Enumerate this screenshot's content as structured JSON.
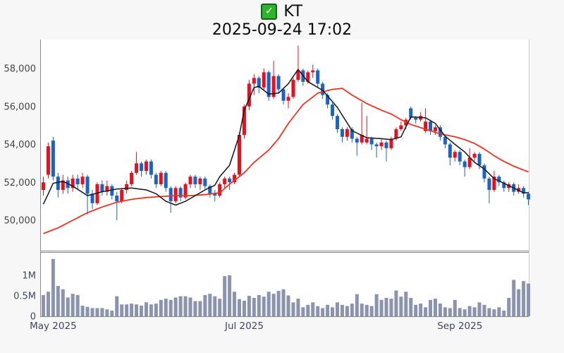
{
  "header": {
    "checkbox_icon": "checked-checkbox-icon",
    "checkbox_glyph": "✓",
    "checkbox_color": "#2eb32e",
    "checkbox_border": "#116611",
    "title": "KT",
    "datetime": "2025-09-24 17:02"
  },
  "chart_data": {
    "type": "candlestick",
    "title": "KT",
    "subtitle": "2025-09-24 17:02",
    "legend": "none",
    "grid": "off",
    "panels": [
      "price",
      "volume"
    ],
    "price_axis": {
      "side": "left",
      "ticks": [
        50000,
        52000,
        54000,
        56000,
        58000
      ],
      "tick_labels": [
        "50,000",
        "52,000",
        "54,000",
        "56,000",
        "58,000"
      ],
      "min": 48900,
      "max": 59400
    },
    "volume_axis": {
      "side": "left",
      "unit": "M",
      "ticks": [
        0,
        0.5,
        1
      ],
      "tick_labels": [
        "0",
        "0.5M",
        "1M"
      ],
      "max": 1.55
    },
    "x_ticks": [
      {
        "index": 2,
        "label": "May 2025"
      },
      {
        "index": 41,
        "label": "Jul 2025"
      },
      {
        "index": 85,
        "label": "Sep 2025"
      }
    ],
    "candles_ohlc": [
      [
        51600,
        52300,
        51300,
        52000
      ],
      [
        52400,
        54100,
        52200,
        53900
      ],
      [
        54200,
        54400,
        52100,
        52300
      ],
      [
        52300,
        52500,
        51200,
        51600
      ],
      [
        51600,
        52400,
        51400,
        52100
      ],
      [
        52100,
        52300,
        51400,
        51700
      ],
      [
        51700,
        52400,
        51500,
        52200
      ],
      [
        52200,
        52400,
        51600,
        51900
      ],
      [
        51900,
        52500,
        51700,
        52300
      ],
      [
        52300,
        52400,
        50300,
        51400
      ],
      [
        51400,
        51600,
        50600,
        50900
      ],
      [
        50900,
        52000,
        50800,
        51900
      ],
      [
        51900,
        52100,
        51300,
        51500
      ],
      [
        51500,
        52100,
        51300,
        51800
      ],
      [
        51800,
        51900,
        51100,
        51300
      ],
      [
        51300,
        51500,
        50000,
        51000
      ],
      [
        51000,
        51700,
        50900,
        51600
      ],
      [
        51600,
        52100,
        51400,
        51900
      ],
      [
        51900,
        52600,
        51800,
        52500
      ],
      [
        52500,
        53600,
        52400,
        53000
      ],
      [
        53000,
        53100,
        52300,
        52600
      ],
      [
        52600,
        53200,
        52400,
        53100
      ],
      [
        53100,
        53200,
        52200,
        52400
      ],
      [
        52400,
        52500,
        51700,
        51900
      ],
      [
        51900,
        52600,
        51800,
        52500
      ],
      [
        52500,
        52600,
        51500,
        51700
      ],
      [
        51700,
        51800,
        50400,
        51000
      ],
      [
        51000,
        51800,
        50900,
        51700
      ],
      [
        51700,
        51800,
        51000,
        51200
      ],
      [
        51200,
        52000,
        51100,
        51900
      ],
      [
        51900,
        52400,
        51700,
        52300
      ],
      [
        52300,
        52400,
        51700,
        51900
      ],
      [
        51900,
        52300,
        51600,
        52200
      ],
      [
        52200,
        52300,
        51600,
        51800
      ],
      [
        51800,
        51900,
        51200,
        51400
      ],
      [
        51400,
        51600,
        51000,
        51300
      ],
      [
        51300,
        52000,
        51200,
        51900
      ],
      [
        51900,
        52300,
        51700,
        52200
      ],
      [
        52200,
        52300,
        51600,
        52000
      ],
      [
        52000,
        52500,
        51900,
        52400
      ],
      [
        52400,
        54600,
        52300,
        54500
      ],
      [
        54500,
        56100,
        54300,
        56000
      ],
      [
        56000,
        57400,
        55800,
        57200
      ],
      [
        57200,
        57700,
        56600,
        57500
      ],
      [
        57500,
        57600,
        56700,
        57000
      ],
      [
        57000,
        58000,
        56900,
        57800
      ],
      [
        57800,
        57900,
        56300,
        56500
      ],
      [
        56500,
        58400,
        56400,
        57600
      ],
      [
        57600,
        57700,
        56700,
        56900
      ],
      [
        56900,
        57000,
        56100,
        56300
      ],
      [
        56300,
        56700,
        55900,
        56500
      ],
      [
        56500,
        57500,
        56400,
        57400
      ],
      [
        57400,
        59200,
        57300,
        57900
      ],
      [
        57900,
        58000,
        57100,
        57300
      ],
      [
        57300,
        57900,
        57200,
        57800
      ],
      [
        57800,
        58200,
        57500,
        57900
      ],
      [
        57900,
        58000,
        57000,
        57200
      ],
      [
        57200,
        57300,
        56400,
        56600
      ],
      [
        56600,
        56700,
        55900,
        56100
      ],
      [
        56100,
        56200,
        55300,
        55500
      ],
      [
        55500,
        55600,
        54600,
        54800
      ],
      [
        54800,
        54900,
        54100,
        54400
      ],
      [
        54400,
        54900,
        54200,
        54800
      ],
      [
        54800,
        54900,
        54100,
        54300
      ],
      [
        54300,
        54400,
        53400,
        54100
      ],
      [
        54100,
        56200,
        54000,
        54500
      ],
      [
        54100,
        55500,
        54000,
        54300
      ],
      [
        54300,
        54400,
        53700,
        54000
      ],
      [
        54000,
        54100,
        53300,
        53900
      ],
      [
        53900,
        54300,
        53700,
        54100
      ],
      [
        54100,
        54200,
        53100,
        53800
      ],
      [
        53800,
        54400,
        53700,
        54300
      ],
      [
        54300,
        54900,
        54200,
        54800
      ],
      [
        54800,
        55200,
        54700,
        55000
      ],
      [
        55000,
        55400,
        54800,
        55300
      ],
      [
        55900,
        56000,
        55300,
        55400
      ],
      [
        55400,
        55500,
        55100,
        55300
      ],
      [
        55300,
        55700,
        55200,
        55500
      ],
      [
        54700,
        55900,
        54600,
        55200
      ],
      [
        55200,
        55300,
        54500,
        54700
      ],
      [
        54700,
        55000,
        54500,
        54900
      ],
      [
        54900,
        55000,
        54200,
        54400
      ],
      [
        54400,
        54500,
        53800,
        54000
      ],
      [
        54000,
        54100,
        52900,
        53300
      ],
      [
        53300,
        53700,
        53100,
        53600
      ],
      [
        53600,
        53700,
        52900,
        53100
      ],
      [
        53100,
        53200,
        52300,
        52800
      ],
      [
        52800,
        53800,
        52700,
        53300
      ],
      [
        53300,
        53600,
        53100,
        53500
      ],
      [
        53500,
        53600,
        52700,
        52900
      ],
      [
        52900,
        53000,
        52000,
        52200
      ],
      [
        52200,
        52300,
        50900,
        51600
      ],
      [
        51600,
        52600,
        51500,
        52300
      ],
      [
        52300,
        52400,
        51800,
        52000
      ],
      [
        52000,
        52100,
        51500,
        51700
      ],
      [
        51700,
        52000,
        51500,
        51900
      ],
      [
        51900,
        52000,
        51300,
        51500
      ],
      [
        51500,
        51900,
        51400,
        51700
      ],
      [
        51700,
        51800,
        51200,
        51400
      ],
      [
        51400,
        51500,
        50800,
        51100
      ]
    ],
    "volumes_m": [
      0.52,
      0.6,
      1.4,
      0.74,
      0.66,
      0.46,
      0.55,
      0.52,
      0.26,
      0.23,
      0.2,
      0.2,
      0.2,
      0.17,
      0.14,
      0.49,
      0.29,
      0.29,
      0.31,
      0.29,
      0.26,
      0.34,
      0.29,
      0.31,
      0.4,
      0.43,
      0.4,
      0.46,
      0.49,
      0.49,
      0.46,
      0.37,
      0.37,
      0.52,
      0.55,
      0.49,
      0.43,
      0.98,
      1.0,
      0.6,
      0.42,
      0.38,
      0.5,
      0.45,
      0.52,
      0.48,
      0.6,
      0.55,
      0.62,
      0.66,
      0.51,
      0.34,
      0.43,
      0.22,
      0.28,
      0.34,
      0.25,
      0.2,
      0.28,
      0.22,
      0.34,
      0.28,
      0.25,
      0.31,
      0.54,
      0.31,
      0.28,
      0.25,
      0.54,
      0.4,
      0.45,
      0.43,
      0.63,
      0.48,
      0.6,
      0.45,
      0.28,
      0.31,
      0.22,
      0.4,
      0.43,
      0.31,
      0.22,
      0.2,
      0.4,
      0.2,
      0.17,
      0.25,
      0.22,
      0.34,
      0.28,
      0.2,
      0.17,
      0.22,
      0.14,
      0.45,
      0.89,
      0.66,
      0.86,
      0.8
    ],
    "ma_fast_anchors": [
      [
        0,
        50850
      ],
      [
        2,
        51950
      ],
      [
        4,
        52050
      ],
      [
        6,
        51800
      ],
      [
        9,
        51300
      ],
      [
        12,
        51500
      ],
      [
        15,
        51650
      ],
      [
        18,
        51700
      ],
      [
        21,
        51600
      ],
      [
        23,
        51400
      ],
      [
        25,
        51000
      ],
      [
        27,
        50800
      ],
      [
        29,
        51000
      ],
      [
        31,
        51300
      ],
      [
        33,
        51600
      ],
      [
        35,
        51850
      ],
      [
        36,
        52300
      ],
      [
        38,
        52900
      ],
      [
        40,
        54500
      ],
      [
        41,
        55800
      ],
      [
        43,
        57000
      ],
      [
        44,
        57050
      ],
      [
        46,
        56650
      ],
      [
        48,
        56700
      ],
      [
        50,
        57200
      ],
      [
        52,
        57950
      ],
      [
        54,
        57300
      ],
      [
        57,
        56850
      ],
      [
        60,
        55950
      ],
      [
        63,
        54720
      ],
      [
        66,
        54350
      ],
      [
        69,
        54300
      ],
      [
        71,
        54250
      ],
      [
        73,
        54400
      ],
      [
        75,
        55450
      ],
      [
        78,
        55400
      ],
      [
        80,
        55100
      ],
      [
        82,
        54430
      ],
      [
        84,
        54000
      ],
      [
        86,
        53600
      ],
      [
        88,
        53050
      ],
      [
        90,
        52700
      ],
      [
        92,
        52200
      ],
      [
        94,
        51950
      ],
      [
        96,
        51700
      ],
      [
        98,
        51450
      ],
      [
        99,
        51450
      ]
    ],
    "ma_slow_anchors": [
      [
        0,
        49300
      ],
      [
        3,
        49600
      ],
      [
        6,
        50000
      ],
      [
        9,
        50400
      ],
      [
        12,
        50700
      ],
      [
        15,
        50950
      ],
      [
        18,
        51100
      ],
      [
        21,
        51200
      ],
      [
        24,
        51250
      ],
      [
        27,
        51300
      ],
      [
        30,
        51300
      ],
      [
        33,
        51350
      ],
      [
        36,
        51450
      ],
      [
        38,
        51900
      ],
      [
        41,
        52500
      ],
      [
        43,
        53050
      ],
      [
        46,
        53700
      ],
      [
        48,
        54300
      ],
      [
        50,
        55100
      ],
      [
        53,
        56100
      ],
      [
        56,
        56700
      ],
      [
        59,
        56900
      ],
      [
        61,
        56950
      ],
      [
        63,
        56600
      ],
      [
        66,
        56150
      ],
      [
        69,
        55800
      ],
      [
        71,
        55600
      ],
      [
        73,
        55300
      ],
      [
        75,
        55050
      ],
      [
        78,
        54800
      ],
      [
        81,
        54550
      ],
      [
        84,
        54400
      ],
      [
        86,
        54250
      ],
      [
        88,
        54050
      ],
      [
        90,
        53750
      ],
      [
        92,
        53400
      ],
      [
        94,
        53100
      ],
      [
        96,
        52850
      ],
      [
        98,
        52650
      ],
      [
        99,
        52550
      ]
    ],
    "colors": {
      "up_candle": "#e8101e",
      "down_candle": "#1b63c5",
      "ma_fast": "#141414",
      "ma_slow": "#f5311e",
      "volume_bar": "#8b93ae",
      "axis_line": "#8a8a8a",
      "panel_border": "#cccccc",
      "price_label": "#444444",
      "x_label": "#3e4560",
      "panel_bg": "#ffffff"
    }
  }
}
